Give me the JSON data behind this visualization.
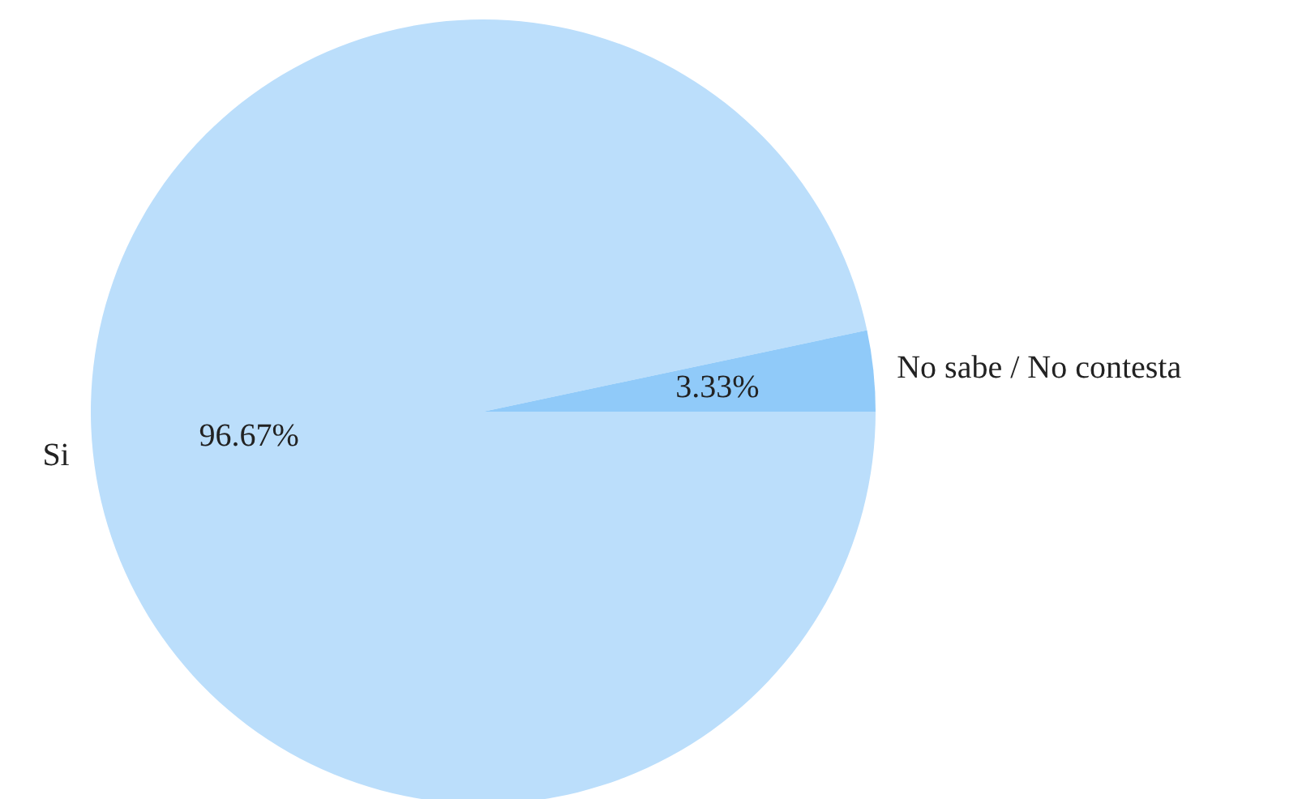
{
  "chart_data": {
    "type": "pie",
    "categories": [
      "Si",
      "No sabe / No contesta"
    ],
    "values": [
      96.67,
      3.33
    ],
    "value_labels": [
      "96.67%",
      "3.33%"
    ],
    "colors": [
      "#bbdefb",
      "#90caf9"
    ]
  }
}
